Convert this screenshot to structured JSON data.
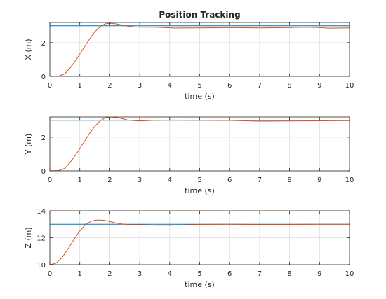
{
  "colors": {
    "reference": "#0072BD",
    "actual": "#D95319",
    "grid": "#dcdcdc",
    "axis": "#262626"
  },
  "chart_data": [
    {
      "type": "line",
      "title": "Position Tracking",
      "xlabel": "time (s)",
      "ylabel": "X (m)",
      "xlim": [
        0,
        10
      ],
      "ylim": [
        0,
        3.2
      ],
      "xticks": [
        0,
        1,
        2,
        3,
        4,
        5,
        6,
        7,
        8,
        9,
        10
      ],
      "yticks": [
        0,
        2
      ],
      "grid": true,
      "series": [
        {
          "x": [
            0,
            10
          ],
          "y": [
            3,
            3
          ]
        },
        {
          "x": [
            0,
            0.3,
            0.5,
            0.7,
            0.9,
            1.1,
            1.3,
            1.5,
            1.7,
            1.85,
            2.0,
            2.2,
            2.4,
            2.6,
            2.8,
            3.0,
            3.5,
            3.8,
            4.2,
            5,
            6,
            7,
            8,
            8.5,
            9,
            9.3,
            10
          ],
          "y": [
            0,
            0.02,
            0.15,
            0.55,
            1.05,
            1.6,
            2.15,
            2.65,
            2.98,
            3.12,
            3.15,
            3.12,
            3.05,
            2.98,
            2.94,
            2.92,
            2.92,
            2.9,
            2.87,
            2.88,
            2.9,
            2.88,
            2.9,
            2.92,
            2.9,
            2.86,
            2.88
          ]
        }
      ]
    },
    {
      "type": "line",
      "title": "",
      "xlabel": "time (s)",
      "ylabel": "Y (m)",
      "xlim": [
        0,
        10
      ],
      "ylim": [
        0,
        3.2
      ],
      "xticks": [
        0,
        1,
        2,
        3,
        4,
        5,
        6,
        7,
        8,
        9,
        10
      ],
      "yticks": [
        0,
        2
      ],
      "grid": true,
      "series": [
        {
          "x": [
            0,
            10
          ],
          "y": [
            3,
            3
          ]
        },
        {
          "x": [
            0,
            0.3,
            0.5,
            0.7,
            0.9,
            1.1,
            1.3,
            1.5,
            1.7,
            1.85,
            2.0,
            2.2,
            2.4,
            2.6,
            2.8,
            3.0,
            3.5,
            4,
            5,
            6,
            6.5,
            7,
            8,
            9,
            10
          ],
          "y": [
            0,
            0.02,
            0.15,
            0.55,
            1.05,
            1.6,
            2.15,
            2.65,
            3.0,
            3.15,
            3.2,
            3.18,
            3.1,
            3.02,
            2.98,
            2.96,
            3.0,
            3.02,
            3.0,
            2.99,
            2.97,
            2.95,
            2.96,
            2.97,
            2.98
          ]
        }
      ]
    },
    {
      "type": "line",
      "title": "",
      "xlabel": "time (s)",
      "ylabel": "Z (m)",
      "xlim": [
        0,
        10
      ],
      "ylim": [
        10,
        14
      ],
      "xticks": [
        0,
        1,
        2,
        3,
        4,
        5,
        6,
        7,
        8,
        9,
        10
      ],
      "yticks": [
        10,
        12,
        14
      ],
      "grid": true,
      "series": [
        {
          "x": [
            0,
            10
          ],
          "y": [
            13,
            13
          ]
        },
        {
          "x": [
            0,
            0.2,
            0.4,
            0.6,
            0.8,
            1.0,
            1.2,
            1.4,
            1.6,
            1.8,
            2.0,
            2.2,
            2.4,
            2.6,
            3.0,
            3.5,
            4.0,
            4.5,
            5,
            6,
            7,
            8,
            9,
            10
          ],
          "y": [
            10,
            10.1,
            10.5,
            11.15,
            11.85,
            12.5,
            13.0,
            13.25,
            13.32,
            13.3,
            13.2,
            13.1,
            13.02,
            12.98,
            12.97,
            12.93,
            12.92,
            12.95,
            12.99,
            13.0,
            12.98,
            12.99,
            13.0,
            13.0
          ]
        }
      ]
    }
  ]
}
